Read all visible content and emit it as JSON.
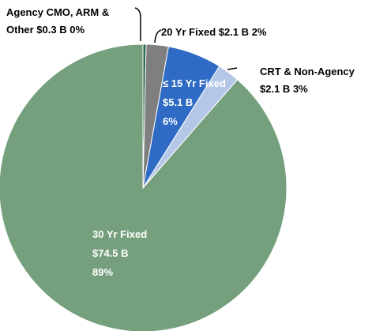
{
  "chart_data": {
    "type": "pie",
    "categories": [
      "Agency CMO, ARM & Other",
      "20 Yr Fixed",
      "≤ 15 Yr Fixed",
      "CRT & Non-Agency",
      "30 Yr Fixed"
    ],
    "values": [
      0.3,
      2.1,
      5.1,
      2.1,
      74.5
    ],
    "value_labels": [
      "$0.3 B",
      "$2.1 B",
      "$5.1 B",
      "$2.1 B",
      "$74.5 B"
    ],
    "share_labels": [
      "0%",
      "2%",
      "6%",
      "3%",
      "89%"
    ],
    "colors": [
      "#2e6b4f",
      "#7f7f7f",
      "#2f6bc4",
      "#b4c7e7",
      "#76a07d"
    ]
  }
}
